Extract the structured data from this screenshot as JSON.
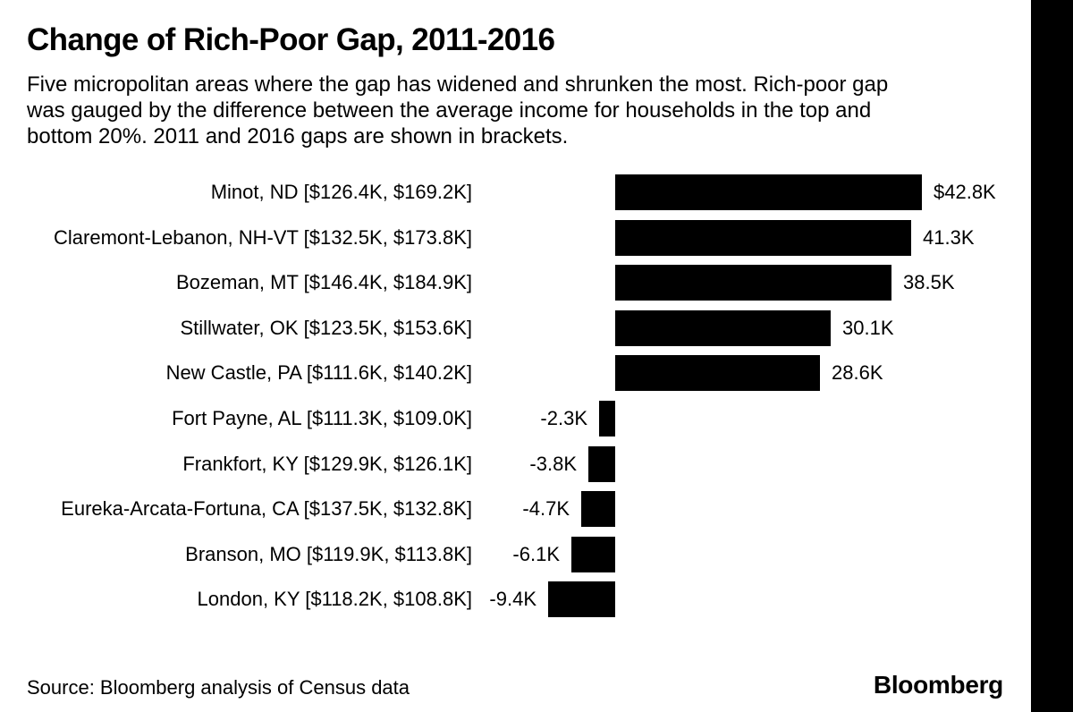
{
  "header": {
    "title": "Change of Rich-Poor Gap, 2011-2016",
    "subtitle_lines": [
      "Five micropolitan areas where the gap has widened and shrunken the most. Rich-poor gap",
      "was gauged by the difference between the average income for households in the top and",
      "bottom 20%. 2011 and 2016 gaps are shown in brackets."
    ]
  },
  "chart_data": {
    "type": "bar",
    "orientation": "horizontal",
    "value_unit": "thousand USD (K)",
    "baseline": 0,
    "xlim": [
      -9.4,
      42.8
    ],
    "grid": false,
    "legend": false,
    "bar_color": "#000000",
    "categories": [
      "Minot, ND [$126.4K, $169.2K]",
      "Claremont-Lebanon, NH-VT [$132.5K, $173.8K]",
      "Bozeman, MT [$146.4K, $184.9K]",
      "Stillwater, OK [$123.5K, $153.6K]",
      "New Castle, PA [$111.6K, $140.2K]",
      "Fort Payne, AL [$111.3K, $109.0K]",
      "Frankfort, KY [$129.9K, $126.1K]",
      "Eureka-Arcata-Fortuna, CA [$137.5K, $132.8K]",
      "Branson, MO [$119.9K, $113.8K]",
      "London, KY [$118.2K, $108.8K]"
    ],
    "values": [
      42.8,
      41.3,
      38.5,
      30.1,
      28.6,
      -2.3,
      -3.8,
      -4.7,
      -6.1,
      -9.4
    ],
    "value_labels": [
      "$42.8K",
      "41.3K",
      "38.5K",
      "30.1K",
      "28.6K",
      "-2.3K",
      "-3.8K",
      "-4.7K",
      "-6.1K",
      "-9.4K"
    ]
  },
  "footer": {
    "source": "Source: Bloomberg analysis of Census data",
    "brand": "Bloomberg"
  },
  "colors": {
    "background": "#ffffff",
    "ink": "#000000",
    "right_stripe": "#000000"
  }
}
